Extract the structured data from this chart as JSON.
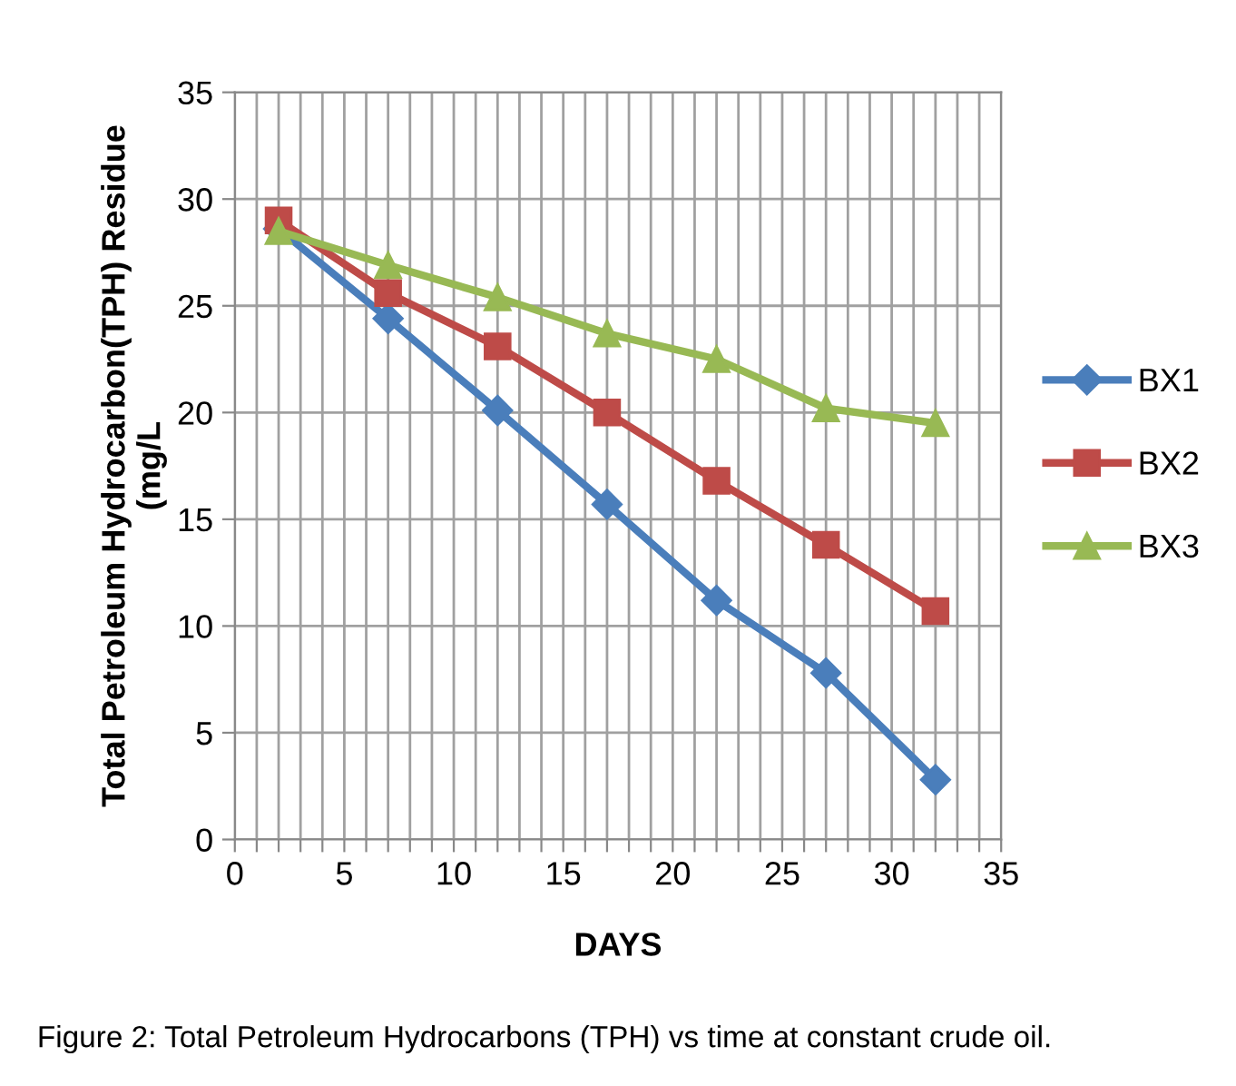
{
  "chart_data": {
    "type": "line",
    "xlabel": "DAYS",
    "ylabel": "Total Petroleum Hydrocarbon(TPH) Residue\n(mg/L",
    "x": [
      2,
      7,
      12,
      17,
      22,
      27,
      32
    ],
    "series": [
      {
        "name": "BX1",
        "color": "#4a7ebb",
        "marker": "diamond",
        "values": [
          28.6,
          24.4,
          20.1,
          15.7,
          11.2,
          7.8,
          2.8
        ]
      },
      {
        "name": "BX2",
        "color": "#be4b48",
        "marker": "square",
        "values": [
          29,
          25.6,
          23.1,
          20,
          16.8,
          13.8,
          10.7
        ]
      },
      {
        "name": "BX3",
        "color": "#98b954",
        "marker": "triangle",
        "values": [
          28.5,
          26.9,
          25.4,
          23.7,
          22.5,
          20.2,
          19.5
        ]
      }
    ],
    "xlim": [
      0,
      35
    ],
    "ylim": [
      0,
      35
    ],
    "xticks": [
      0,
      {
        "value": 1,
        "label": null
      },
      {
        "value": 2,
        "label": null
      },
      {
        "value": 3,
        "label": null
      },
      {
        "value": 4,
        "label": null
      },
      5,
      {
        "value": 6,
        "label": null
      },
      {
        "value": 7,
        "label": null
      },
      {
        "value": 8,
        "label": null
      },
      {
        "value": 9,
        "label": null
      },
      10,
      {
        "value": 11,
        "label": null
      },
      {
        "value": 12,
        "label": null
      },
      {
        "value": 13,
        "label": null
      },
      {
        "value": 14,
        "label": null
      },
      15,
      {
        "value": 16,
        "label": null
      },
      {
        "value": 17,
        "label": null
      },
      {
        "value": 18,
        "label": null
      },
      {
        "value": 19,
        "label": null
      },
      20,
      {
        "value": 21,
        "label": null
      },
      {
        "value": 22,
        "label": null
      },
      {
        "value": 23,
        "label": null
      },
      {
        "value": 24,
        "label": null
      },
      25,
      {
        "value": 26,
        "label": null
      },
      {
        "value": 27,
        "label": null
      },
      {
        "value": 28,
        "label": null
      },
      {
        "value": 29,
        "label": null
      },
      30,
      {
        "value": 31,
        "label": null
      },
      {
        "value": 32,
        "label": null
      },
      {
        "value": 33,
        "label": null
      },
      {
        "value": 34,
        "label": null
      },
      35
    ],
    "yticks": [
      0,
      5,
      10,
      15,
      20,
      25,
      30,
      35
    ],
    "grid": true,
    "legend": "right",
    "line_style": "solid",
    "annotations": [
      "Figure 2: Total Petroleum Hydrocarbons (TPH) vs time at constant crude oil."
    ]
  }
}
